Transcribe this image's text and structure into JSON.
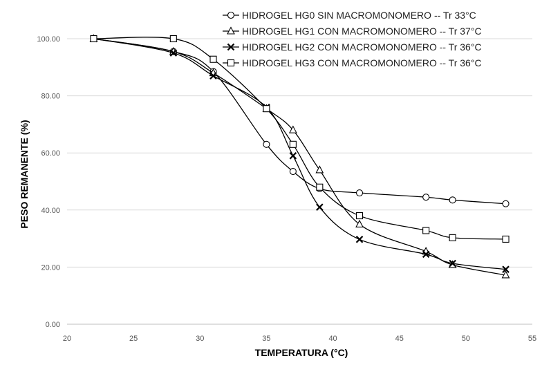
{
  "chart_data": {
    "type": "line",
    "title": "",
    "xlabel": "TEMPERATURA (°C)",
    "ylabel": "PESO REMANENTE (%)",
    "xlim": [
      20,
      55
    ],
    "ylim": [
      0,
      100
    ],
    "x_ticks": [
      "20",
      "25",
      "30",
      "35",
      "40",
      "45",
      "50",
      "55"
    ],
    "y_ticks": [
      "0.00",
      "20.00",
      "40.00",
      "60.00",
      "80.00",
      "100.00"
    ],
    "grid": "horizontal",
    "legend_position": "top-right",
    "series": [
      {
        "name": "HIDROGEL HG0 SIN MACROMONOMERO -- Tr 33°C",
        "marker": "circle",
        "color": "#000000",
        "points": [
          [
            22,
            100
          ],
          [
            28,
            95.5
          ],
          [
            31,
            88.5
          ],
          [
            35,
            63
          ],
          [
            37,
            53.5
          ],
          [
            39,
            47.5
          ],
          [
            42,
            46
          ],
          [
            47,
            44.5
          ],
          [
            49,
            43.5
          ],
          [
            53,
            42.2
          ]
        ]
      },
      {
        "name": "HIDROGEL HG1 CON MACROMONOMERO -- Tr 37°C",
        "marker": "triangle",
        "color": "#000000",
        "points": [
          [
            22,
            100
          ],
          [
            28,
            95.5
          ],
          [
            31,
            88
          ],
          [
            35,
            75.5
          ],
          [
            37,
            68
          ],
          [
            39,
            54
          ],
          [
            42,
            35
          ],
          [
            47,
            25.5
          ],
          [
            49,
            20.8
          ],
          [
            53,
            17.2
          ]
        ]
      },
      {
        "name": "HIDROGEL HG2 CON MACROMONOMERO -- Tr 36°C",
        "marker": "x",
        "color": "#000000",
        "points": [
          [
            22,
            100
          ],
          [
            28,
            95
          ],
          [
            31,
            87
          ],
          [
            35,
            76
          ],
          [
            37,
            59
          ],
          [
            39,
            41
          ],
          [
            42,
            29.7
          ],
          [
            47,
            24.5
          ],
          [
            49,
            21.3
          ],
          [
            53,
            19.2
          ]
        ]
      },
      {
        "name": "HIDROGEL HG3 CON MACROMONOMERO -- Tr 36°C",
        "marker": "square",
        "color": "#000000",
        "points": [
          [
            22,
            100
          ],
          [
            28,
            100
          ],
          [
            31,
            92.8
          ],
          [
            35,
            75.5
          ],
          [
            37,
            63
          ],
          [
            39,
            48
          ],
          [
            42,
            38
          ],
          [
            47,
            32.8
          ],
          [
            49,
            30.3
          ],
          [
            53,
            29.8
          ]
        ]
      }
    ]
  }
}
